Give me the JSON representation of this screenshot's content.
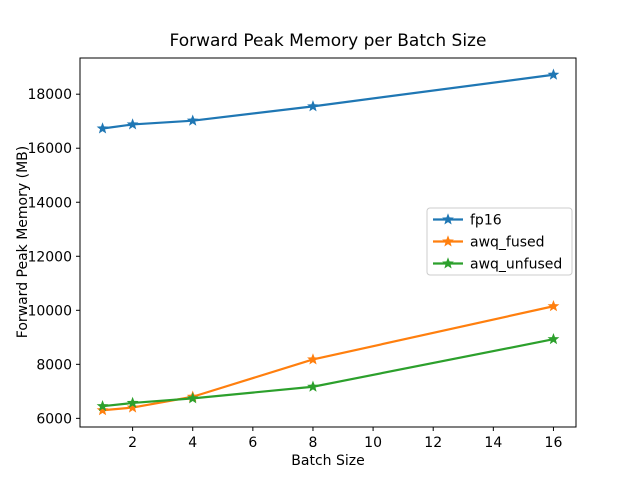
{
  "figure": {
    "background": "#ffffff",
    "spine_color": "#000000",
    "legend_edge_color": "#cccccc"
  },
  "chart_data": {
    "type": "line",
    "title": "Forward Peak Memory per Batch Size",
    "xlabel": "Batch Size",
    "ylabel": "Forward Peak Memory (MB)",
    "x": [
      1,
      2,
      4,
      8,
      16
    ],
    "series": [
      {
        "name": "fp16",
        "color": "#1f77b4",
        "marker": "star",
        "values": [
          16730,
          16880,
          17020,
          17550,
          18720
        ]
      },
      {
        "name": "awq_fused",
        "color": "#ff7f0e",
        "marker": "star",
        "values": [
          6300,
          6400,
          6800,
          8180,
          10150
        ]
      },
      {
        "name": "awq_unfused",
        "color": "#2ca02c",
        "marker": "star",
        "values": [
          6450,
          6570,
          6740,
          7170,
          8930
        ]
      }
    ],
    "xticks": [
      2,
      4,
      6,
      8,
      10,
      12,
      14,
      16
    ],
    "yticks": [
      6000,
      8000,
      10000,
      12000,
      14000,
      16000,
      18000
    ],
    "xlim": [
      0.25,
      16.75
    ],
    "ylim": [
      5680,
      19340
    ],
    "grid": false,
    "legend_position": "center-right",
    "legend": [
      "fp16",
      "awq_fused",
      "awq_unfused"
    ]
  }
}
